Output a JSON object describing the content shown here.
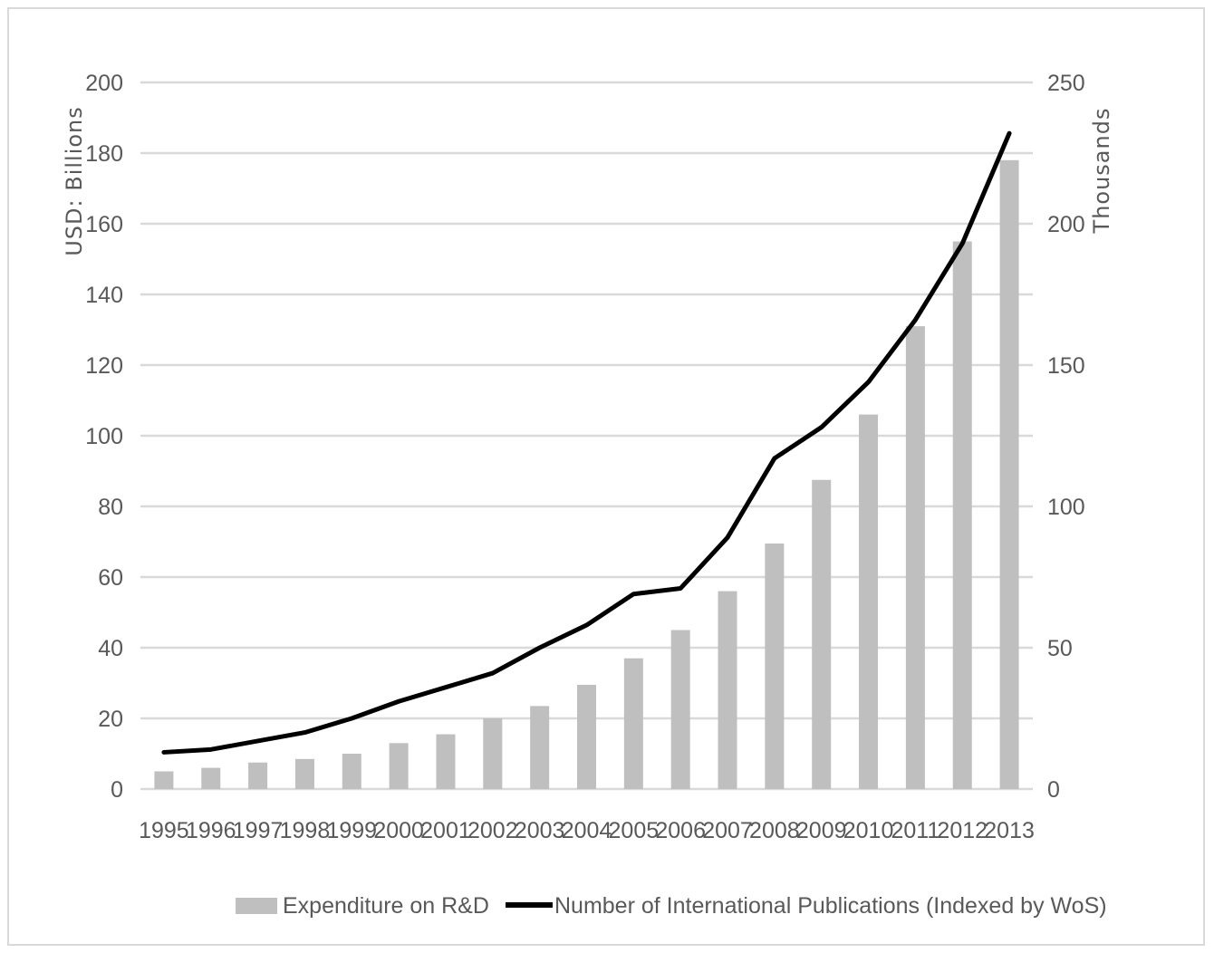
{
  "chart_data": {
    "type": "bar+line",
    "title": "",
    "categories": [
      "1995",
      "1996",
      "1997",
      "1998",
      "1999",
      "2000",
      "2001",
      "2002",
      "2003",
      "2004",
      "2005",
      "2006",
      "2007",
      "2008",
      "2009",
      "2010",
      "2011",
      "2012",
      "2013"
    ],
    "series": [
      {
        "name": "Expenditure on R&D",
        "type": "bar",
        "axis": "left",
        "color": "#bfbfbf",
        "values": [
          5,
          6,
          7.5,
          8.5,
          10,
          13,
          15.5,
          20,
          23.5,
          29.5,
          37,
          45,
          56,
          69.5,
          87.5,
          106,
          131,
          155,
          178
        ]
      },
      {
        "name": "Number of International Publications (Indexed by WoS)",
        "type": "line",
        "axis": "right",
        "color": "#000000",
        "values": [
          13,
          14,
          17,
          20,
          25,
          31,
          36,
          41,
          50,
          58,
          69,
          71,
          89,
          117,
          128,
          144,
          166,
          193,
          232
        ]
      }
    ],
    "ylabel": "USD: Billions",
    "y2label": "Thousands",
    "ylim": [
      0,
      200
    ],
    "y2lim": [
      0,
      250
    ],
    "yticks": [
      "0",
      "20",
      "40",
      "60",
      "80",
      "100",
      "120",
      "140",
      "160",
      "180",
      "200"
    ],
    "y2ticks": [
      "0",
      "50",
      "100",
      "150",
      "200",
      "250"
    ],
    "grid": true,
    "legend": "bottom"
  }
}
